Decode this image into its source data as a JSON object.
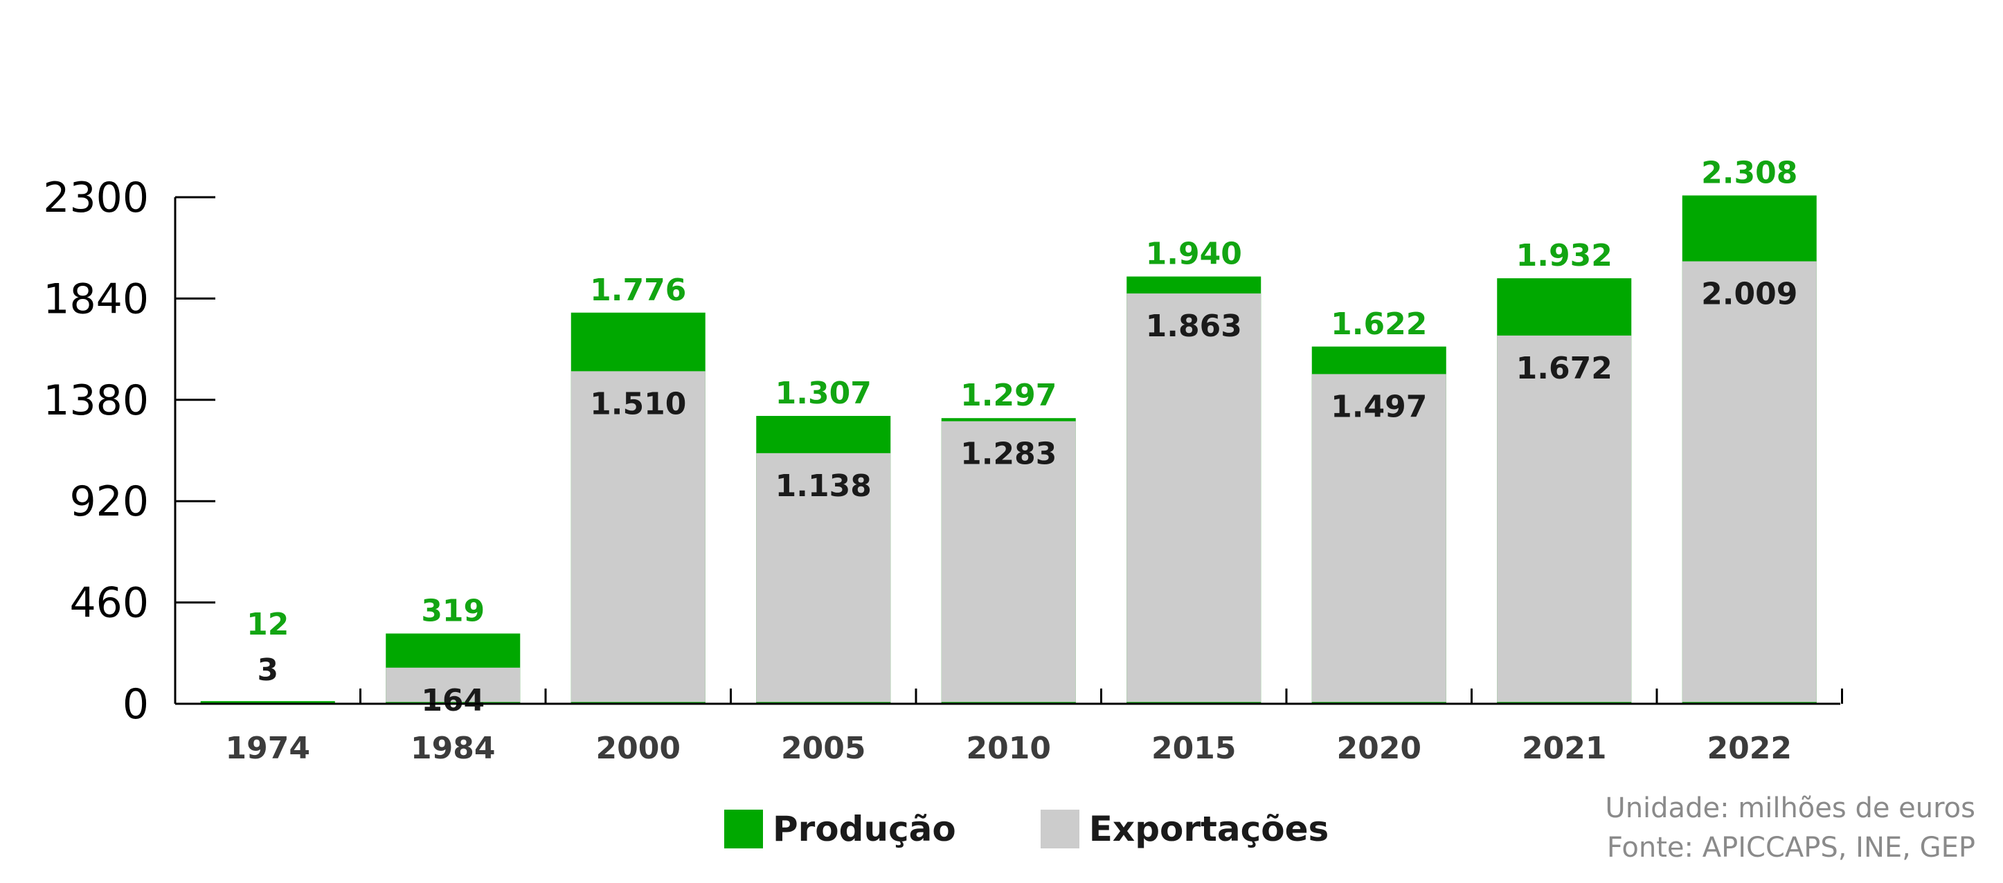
{
  "chart_data": {
    "type": "bar",
    "stacked_overlay": true,
    "categories": [
      "1974",
      "1984",
      "2000",
      "2005",
      "2010",
      "2015",
      "2020",
      "2021",
      "2022"
    ],
    "series": [
      {
        "name": "Produção",
        "values": [
          12,
          319,
          1776,
          1307,
          1297,
          1940,
          1622,
          1932,
          2308
        ],
        "labels": [
          "12",
          "319",
          "1.776",
          "1.307",
          "1.297",
          "1.940",
          "1.622",
          "1.932",
          "2.308"
        ]
      },
      {
        "name": "Exportações",
        "values": [
          3,
          164,
          1510,
          1138,
          1283,
          1863,
          1497,
          1672,
          2009
        ],
        "labels": [
          "3",
          "164",
          "1.510",
          "1.138",
          "1.283",
          "1.863",
          "1.497",
          "1.672",
          "2.009"
        ]
      }
    ],
    "y_ticks": [
      "0",
      "460",
      "920",
      "1380",
      "1840",
      "2300"
    ],
    "y_tick_values": [
      0,
      460,
      920,
      1380,
      1840,
      2300
    ],
    "ylim": [
      0,
      2300
    ],
    "grid": false,
    "legend_position": "bottom-center"
  },
  "colors": {
    "producao": "#00a800",
    "exportacoes": "#cccccc",
    "axis": "#000000",
    "producao_label": "#12a512",
    "exportacoes_label": "#1a1a1a",
    "category_label": "#3c3c3c"
  },
  "legend": {
    "producao": "Produção",
    "exportacoes": "Exportações"
  },
  "note": {
    "unit": "Unidade: milhões de euros",
    "source": "Fonte: APICCAPS, INE, GEP"
  }
}
